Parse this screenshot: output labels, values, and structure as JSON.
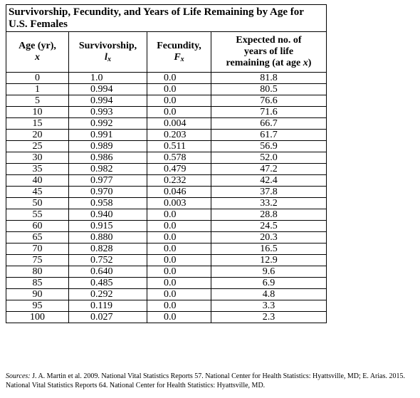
{
  "table": {
    "title": "Survivorship, Fecundity, and Years of Life Remaining by Age for U.S. Females",
    "headers": {
      "age_label": "Age (yr),",
      "age_symbol": "x",
      "surv_label": "Survivorship,",
      "surv_symbol": "l",
      "surv_sub": "x",
      "fec_label": "Fecundity,",
      "fec_symbol": "F",
      "fec_sub": "x",
      "exp_line1": "Expected no. of",
      "exp_line2": "years of life",
      "exp_line3": "remaining (at age ",
      "exp_symbol": "x",
      "exp_close": ")"
    },
    "rows": [
      {
        "age": "0",
        "surv": "1.0",
        "fec": "0.0",
        "exp": "81.8"
      },
      {
        "age": "1",
        "surv": "0.994",
        "fec": "0.0",
        "exp": "80.5"
      },
      {
        "age": "5",
        "surv": "0.994",
        "fec": "0.0",
        "exp": "76.6"
      },
      {
        "age": "10",
        "surv": "0.993",
        "fec": "0.0",
        "exp": "71.6"
      },
      {
        "age": "15",
        "surv": "0.992",
        "fec": "0.004",
        "exp": "66.7"
      },
      {
        "age": "20",
        "surv": "0.991",
        "fec": "0.203",
        "exp": "61.7"
      },
      {
        "age": "25",
        "surv": "0.989",
        "fec": "0.511",
        "exp": "56.9"
      },
      {
        "age": "30",
        "surv": "0.986",
        "fec": "0.578",
        "exp": "52.0"
      },
      {
        "age": "35",
        "surv": "0.982",
        "fec": "0.479",
        "exp": "47.2"
      },
      {
        "age": "40",
        "surv": "0.977",
        "fec": "0.232",
        "exp": "42.4"
      },
      {
        "age": "45",
        "surv": "0.970",
        "fec": "0.046",
        "exp": "37.8"
      },
      {
        "age": "50",
        "surv": "0.958",
        "fec": "0.003",
        "exp": "33.2"
      },
      {
        "age": "55",
        "surv": "0.940",
        "fec": "0.0",
        "exp": "28.8"
      },
      {
        "age": "60",
        "surv": "0.915",
        "fec": "0.0",
        "exp": "24.5"
      },
      {
        "age": "65",
        "surv": "0.880",
        "fec": "0.0",
        "exp": "20.3"
      },
      {
        "age": "70",
        "surv": "0.828",
        "fec": "0.0",
        "exp": "16.5"
      },
      {
        "age": "75",
        "surv": "0.752",
        "fec": "0.0",
        "exp": "12.9"
      },
      {
        "age": "80",
        "surv": "0.640",
        "fec": "0.0",
        "exp": "9.6"
      },
      {
        "age": "85",
        "surv": "0.485",
        "fec": "0.0",
        "exp": "6.9"
      },
      {
        "age": "90",
        "surv": "0.292",
        "fec": "0.0",
        "exp": "4.8"
      },
      {
        "age": "95",
        "surv": "0.119",
        "fec": "0.0",
        "exp": "3.3"
      },
      {
        "age": "100",
        "surv": "0.027",
        "fec": "0.0",
        "exp": "2.3"
      }
    ]
  },
  "sources": {
    "label": "Sources:",
    "text": " J. A. Martin et al. 2009. National Vital Statistics Reports 57. National Center for Health Statistics: Hyattsville, MD; E. Arias. 2015. National Vital Statistics Reports 64. National Center for Health Statistics: Hyattsville, MD."
  }
}
